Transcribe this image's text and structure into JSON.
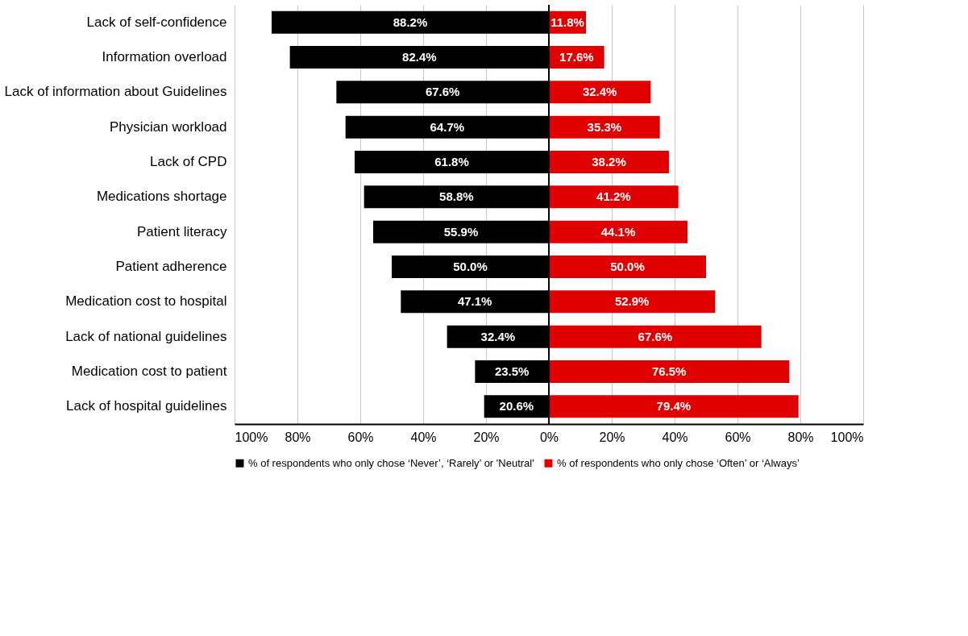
{
  "chart_data": {
    "type": "bar",
    "orientation": "horizontal",
    "categories": [
      "Lack of self-confidence",
      "Information overload",
      "Lack of information about Guidelines",
      "Physician workload",
      "Lack of CPD",
      "Medications shortage",
      "Patient literacy",
      "Patient adherence",
      "Medication cost to hospital",
      "Lack of national guidelines",
      "Medication cost to patient",
      "Lack of hospital guidelines"
    ],
    "series": [
      {
        "name": "% of respondents who only chose ‘Never’, ‘Rarely’ or 'Neutral'",
        "color": "#000000",
        "values": [
          88.2,
          82.4,
          67.6,
          64.7,
          61.8,
          58.8,
          55.9,
          50.0,
          47.1,
          32.4,
          23.5,
          20.6
        ],
        "base": [
          -88.2,
          -82.4,
          -67.6,
          -64.7,
          -61.8,
          -58.8,
          -55.9,
          -50.0,
          -47.1,
          -32.4,
          -23.5,
          -20.6
        ],
        "value_labels": [
          "88.2%",
          "82.4%",
          "67.6%",
          "64.7%",
          "61.8%",
          "58.8%",
          "55.9%",
          "50.0%",
          "47.1%",
          "32.4%",
          "23.5%",
          "20.6%"
        ]
      },
      {
        "name": "% of respondents who only chose ‘Often’ or ‘Always’",
        "color": "#e00000",
        "values": [
          11.8,
          17.6,
          32.4,
          35.3,
          38.2,
          41.2,
          44.1,
          50.0,
          52.9,
          67.6,
          76.5,
          79.4
        ],
        "value_labels": [
          "11.8%",
          "17.6%",
          "32.4%",
          "35.3%",
          "38.2%",
          "41.2%",
          "44.1%",
          "50.0%",
          "52.9%",
          "67.6%",
          "76.5%",
          "79.4%"
        ]
      }
    ],
    "xlim": [
      -100,
      100
    ],
    "xticks": [
      {
        "value": -100,
        "label": "100%"
      },
      {
        "value": -80,
        "label": "80%"
      },
      {
        "value": -60,
        "label": "60%"
      },
      {
        "value": -40,
        "label": "40%"
      },
      {
        "value": -20,
        "label": "20%"
      },
      {
        "value": 0,
        "label": "0%"
      },
      {
        "value": 20,
        "label": "20%"
      },
      {
        "value": 40,
        "label": "40%"
      },
      {
        "value": 60,
        "label": "60%"
      },
      {
        "value": 80,
        "label": "80%"
      },
      {
        "value": 100,
        "label": "100%"
      }
    ],
    "ref_lines": [
      {
        "axis": "x",
        "value": 0,
        "color": "#000000"
      }
    ],
    "grid": "x",
    "legend": "bottom"
  }
}
